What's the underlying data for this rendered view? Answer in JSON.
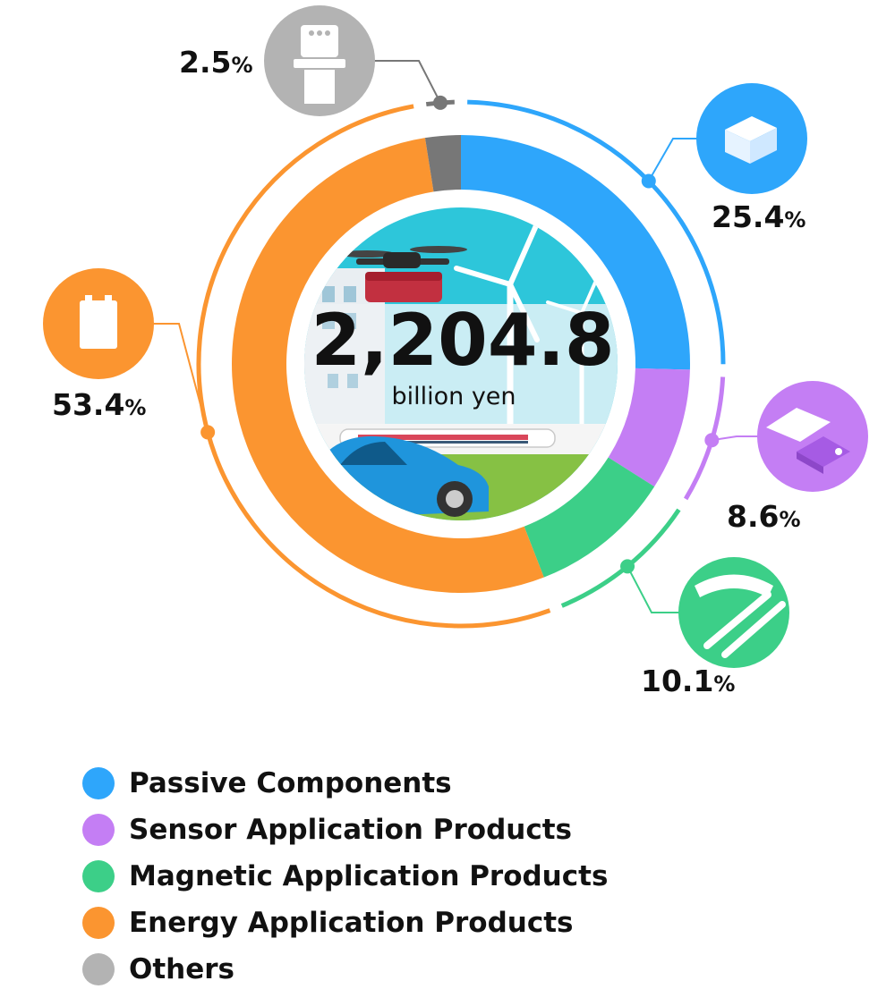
{
  "chart_data": {
    "type": "pie",
    "variant": "donut",
    "total": {
      "value": "2,204.8",
      "unit": "billion yen"
    },
    "unit_symbol": "%",
    "segments": [
      {
        "name": "Passive Components",
        "value": 25.4,
        "value_label": "25.4",
        "color": "#2ea6fb",
        "icon": "capacitor-chip-icon"
      },
      {
        "name": "Sensor Application Products",
        "value": 8.6,
        "value_label": "8.6",
        "color": "#c47ef4",
        "icon": "sensor-chip-icon"
      },
      {
        "name": "Magnetic Application Products",
        "value": 10.1,
        "value_label": "10.1",
        "color": "#3ccf88",
        "icon": "magnetic-head-icon"
      },
      {
        "name": "Energy Application Products",
        "value": 53.4,
        "value_label": "53.4",
        "color": "#fb9530",
        "icon": "battery-icon"
      },
      {
        "name": "Others",
        "value": 2.5,
        "value_label": "2.5",
        "color": "#b3b3b3",
        "ring_color": "#777777",
        "icon": "stove-icon"
      }
    ],
    "legend_position": "bottom-left"
  }
}
